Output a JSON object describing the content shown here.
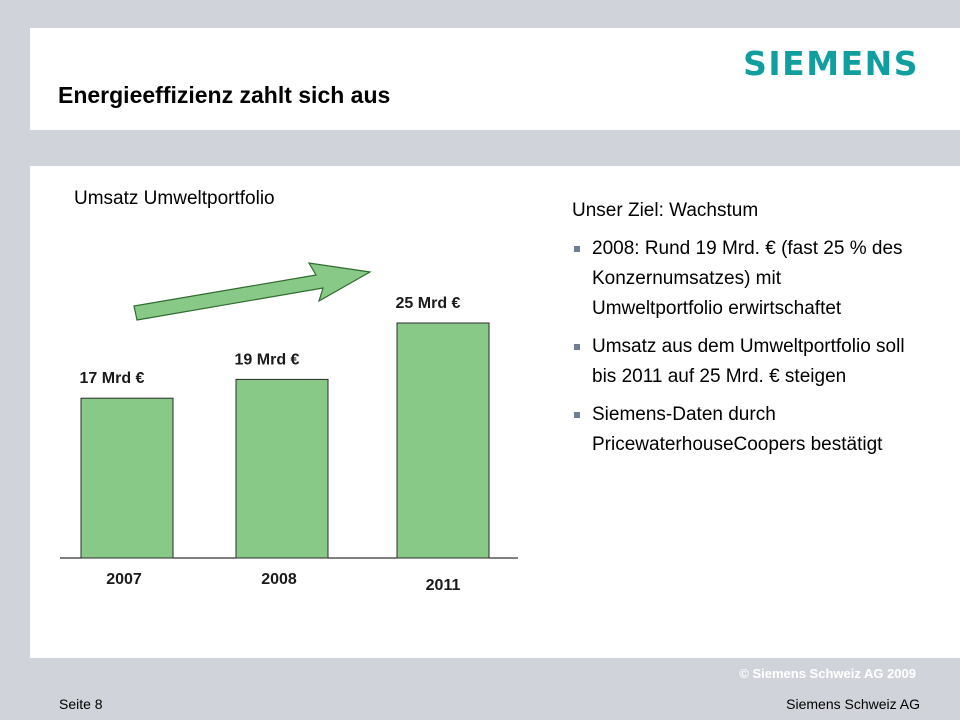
{
  "header": {
    "logo_text": "SIEMENS",
    "title": "Energieeffizienz zahlt sich aus"
  },
  "chart_heading": "Umsatz Umweltportfolio",
  "chart_data": {
    "type": "bar",
    "categories": [
      "2007",
      "2008",
      "2011"
    ],
    "values": [
      17,
      19,
      25
    ],
    "data_labels": [
      "17 Mrd €",
      "19 Mrd €",
      "25 Mrd €"
    ],
    "title": "Umsatz Umweltportfolio",
    "xlabel": "",
    "ylabel": "",
    "ylim": [
      0,
      25
    ],
    "grid": false,
    "bar_color": "#88c988",
    "arrow_color": "#88c988"
  },
  "goal": {
    "heading": "Unser Ziel: Wachstum",
    "bullets": [
      "2008: Rund 19 Mrd. € (fast 25 % des Konzernumsatzes) mit Umweltportfolio erwirtschaftet",
      "Umsatz aus dem Umweltportfolio soll bis 2011 auf 25 Mrd. € steigen",
      "Siemens-Daten durch PricewaterhouseCoopers bestätigt"
    ]
  },
  "footer": {
    "copyright": "© Siemens Schweiz AG 2009",
    "page": "Seite 8",
    "company": "Siemens Schweiz AG"
  },
  "colors": {
    "background": "#d0d3da",
    "logo": "#119e9e",
    "bar": "#88c988"
  }
}
